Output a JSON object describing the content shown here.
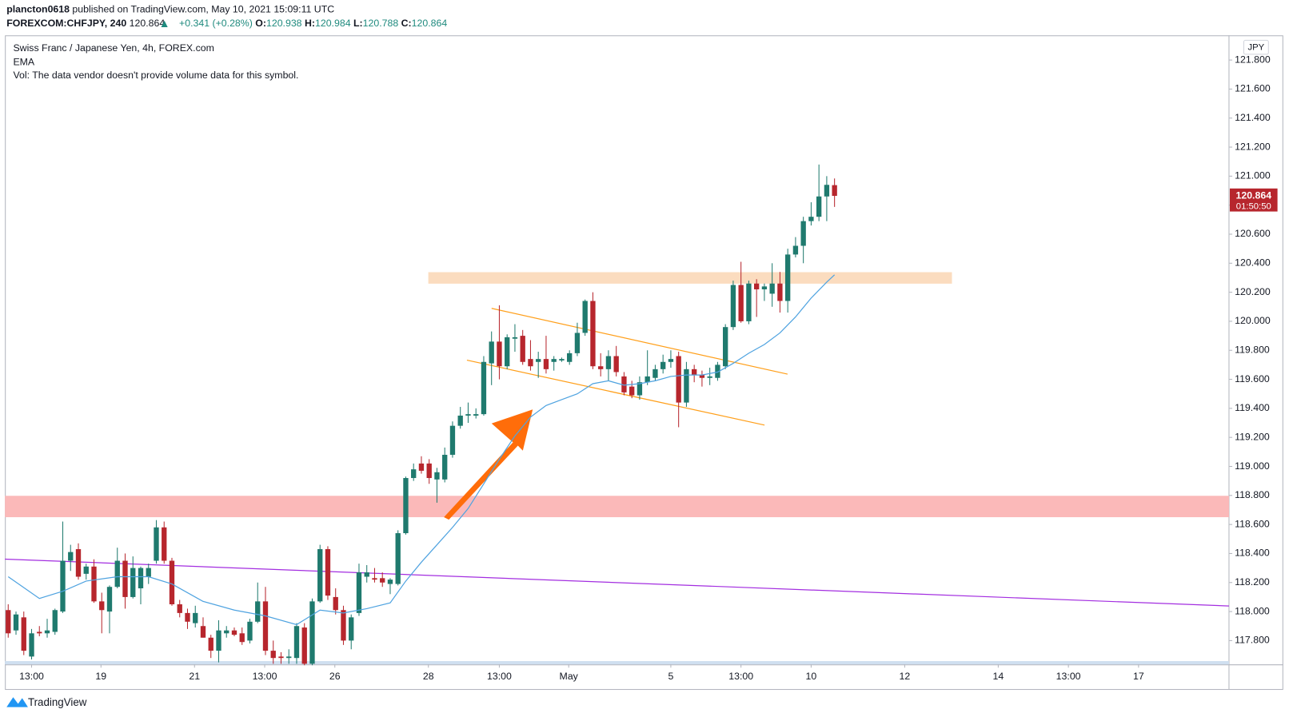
{
  "header": {
    "user": "plancton0618",
    "published": "published on TradingView.com, May 10, 2021 15:09:11 UTC",
    "symbol": "FOREXCOM:CHFJPY, 240",
    "change": "+0.341 (+0.28%)",
    "ohlc_labels": [
      "O:",
      "H:",
      "L:",
      "C:"
    ]
  },
  "brand": "TradingView",
  "chart_data": {
    "type": "candlestick",
    "legend": [
      "Swiss Franc / Japanese Yen, 4h, FOREX.com",
      "EMA",
      "Vol: The data vendor doesn't provide volume data for this symbol."
    ],
    "currency": "JPY",
    "countdown": "01:50:50",
    "up_color": "#1f7a6e",
    "down_color": "#b7262d",
    "ema_color": "#4fa3e0",
    "xlim": [
      -0.42,
      156.6
    ],
    "ylim": [
      117.636,
      121.97
    ],
    "xticks": [
      {
        "value": 3,
        "label": "13:00"
      },
      {
        "value": 11.9,
        "label": "19"
      },
      {
        "value": 23.9,
        "label": "21"
      },
      {
        "value": 32.9,
        "label": "13:00"
      },
      {
        "value": 41.9,
        "label": "26"
      },
      {
        "value": 53.9,
        "label": "28"
      },
      {
        "value": 63,
        "label": "13:00"
      },
      {
        "value": 71.9,
        "label": "May"
      },
      {
        "value": 85,
        "label": "5"
      },
      {
        "value": 94,
        "label": "13:00"
      },
      {
        "value": 103,
        "label": "10"
      },
      {
        "value": 115,
        "label": "12"
      },
      {
        "value": 127,
        "label": "14"
      },
      {
        "value": 136,
        "label": "13:00"
      },
      {
        "value": 145,
        "label": "17"
      }
    ],
    "yticks": [
      {
        "value": 117.8,
        "label": "117.800"
      },
      {
        "value": 118,
        "label": "118.000"
      },
      {
        "value": 118.2,
        "label": "118.200"
      },
      {
        "value": 118.4,
        "label": "118.400"
      },
      {
        "value": 118.6,
        "label": "118.600"
      },
      {
        "value": 118.8,
        "label": "118.800"
      },
      {
        "value": 119,
        "label": "119.000"
      },
      {
        "value": 119.2,
        "label": "119.200"
      },
      {
        "value": 119.4,
        "label": "119.400"
      },
      {
        "value": 119.6,
        "label": "119.600"
      },
      {
        "value": 119.8,
        "label": "119.800"
      },
      {
        "value": 120,
        "label": "120.000"
      },
      {
        "value": 120.2,
        "label": "120.200"
      },
      {
        "value": 120.4,
        "label": "120.400"
      },
      {
        "value": 120.6,
        "label": "120.600"
      },
      {
        "value": 120.8,
        "label": "120.800"
      },
      {
        "value": 121,
        "label": "121.000"
      },
      {
        "value": 121.2,
        "label": "121.200"
      },
      {
        "value": 121.4,
        "label": "121.400"
      },
      {
        "value": 121.6,
        "label": "121.600"
      },
      {
        "value": 121.8,
        "label": "121.800"
      }
    ],
    "candles": [
      {
        "o": 118.01,
        "h": 118.05,
        "l": 117.82,
        "c": 117.85
      },
      {
        "o": 117.87,
        "h": 118.0,
        "l": 117.84,
        "c": 117.98
      },
      {
        "o": 117.96,
        "h": 118.0,
        "l": 117.7,
        "c": 117.73
      },
      {
        "o": 117.69,
        "h": 117.88,
        "l": 117.67,
        "c": 117.85
      },
      {
        "o": 117.86,
        "h": 117.9,
        "l": 117.83,
        "c": 117.85
      },
      {
        "o": 117.85,
        "h": 117.95,
        "l": 117.82,
        "c": 117.87
      },
      {
        "o": 117.86,
        "h": 118.02,
        "l": 117.84,
        "c": 118.01
      },
      {
        "o": 118.0,
        "h": 118.62,
        "l": 117.99,
        "c": 118.35
      },
      {
        "o": 118.35,
        "h": 118.46,
        "l": 118.28,
        "c": 118.41
      },
      {
        "o": 118.43,
        "h": 118.47,
        "l": 118.22,
        "c": 118.24
      },
      {
        "o": 118.26,
        "h": 118.33,
        "l": 118.22,
        "c": 118.31
      },
      {
        "o": 118.31,
        "h": 118.36,
        "l": 118.06,
        "c": 118.07
      },
      {
        "o": 118.07,
        "h": 118.13,
        "l": 117.85,
        "c": 118.01
      },
      {
        "o": 118.0,
        "h": 118.18,
        "l": 117.85,
        "c": 118.17
      },
      {
        "o": 118.17,
        "h": 118.44,
        "l": 118.16,
        "c": 118.35
      },
      {
        "o": 118.35,
        "h": 118.4,
        "l": 118.02,
        "c": 118.1
      },
      {
        "o": 118.1,
        "h": 118.38,
        "l": 118.09,
        "c": 118.3
      },
      {
        "o": 118.16,
        "h": 118.31,
        "l": 118.05,
        "c": 118.3
      },
      {
        "o": 118.24,
        "h": 118.33,
        "l": 118.19,
        "c": 118.3
      },
      {
        "o": 118.35,
        "h": 118.63,
        "l": 118.33,
        "c": 118.58
      },
      {
        "o": 118.58,
        "h": 118.62,
        "l": 118.33,
        "c": 118.35
      },
      {
        "o": 118.35,
        "h": 118.37,
        "l": 118.04,
        "c": 118.05
      },
      {
        "o": 118.05,
        "h": 118.08,
        "l": 117.96,
        "c": 117.99
      },
      {
        "o": 117.99,
        "h": 118.02,
        "l": 117.88,
        "c": 117.93
      },
      {
        "o": 117.92,
        "h": 118.04,
        "l": 117.89,
        "c": 117.99
      },
      {
        "o": 117.9,
        "h": 117.96,
        "l": 117.82,
        "c": 117.82
      },
      {
        "o": 117.82,
        "h": 117.84,
        "l": 117.68,
        "c": 117.73
      },
      {
        "o": 117.73,
        "h": 117.94,
        "l": 117.65,
        "c": 117.87
      },
      {
        "o": 117.85,
        "h": 117.9,
        "l": 117.82,
        "c": 117.87
      },
      {
        "o": 117.87,
        "h": 117.89,
        "l": 117.83,
        "c": 117.84
      },
      {
        "o": 117.85,
        "h": 117.89,
        "l": 117.77,
        "c": 117.79
      },
      {
        "o": 117.8,
        "h": 117.95,
        "l": 117.78,
        "c": 117.93
      },
      {
        "o": 117.93,
        "h": 118.2,
        "l": 117.92,
        "c": 118.07
      },
      {
        "o": 118.07,
        "h": 118.17,
        "l": 117.7,
        "c": 117.73
      },
      {
        "o": 117.73,
        "h": 117.8,
        "l": 117.64,
        "c": 117.68
      },
      {
        "o": 117.69,
        "h": 117.72,
        "l": 117.64,
        "c": 117.68
      },
      {
        "o": 117.68,
        "h": 117.74,
        "l": 117.64,
        "c": 117.69
      },
      {
        "o": 117.68,
        "h": 117.92,
        "l": 117.64,
        "c": 117.9
      },
      {
        "o": 117.89,
        "h": 117.92,
        "l": 117.63,
        "c": 117.64
      },
      {
        "o": 117.64,
        "h": 118.09,
        "l": 117.63,
        "c": 118.07
      },
      {
        "o": 118.07,
        "h": 118.46,
        "l": 118.06,
        "c": 118.43
      },
      {
        "o": 118.43,
        "h": 118.45,
        "l": 118.08,
        "c": 118.11
      },
      {
        "o": 118.1,
        "h": 118.16,
        "l": 117.98,
        "c": 118.01
      },
      {
        "o": 118.01,
        "h": 118.04,
        "l": 117.77,
        "c": 117.8
      },
      {
        "o": 117.8,
        "h": 117.98,
        "l": 117.74,
        "c": 117.96
      },
      {
        "o": 117.99,
        "h": 118.33,
        "l": 117.97,
        "c": 118.27
      },
      {
        "o": 118.24,
        "h": 118.32,
        "l": 118.2,
        "c": 118.27
      },
      {
        "o": 118.23,
        "h": 118.3,
        "l": 118.2,
        "c": 118.22
      },
      {
        "o": 118.23,
        "h": 118.27,
        "l": 118.17,
        "c": 118.2
      },
      {
        "o": 118.19,
        "h": 118.23,
        "l": 118.12,
        "c": 118.22
      },
      {
        "o": 118.19,
        "h": 118.56,
        "l": 118.18,
        "c": 118.54
      },
      {
        "o": 118.54,
        "h": 118.93,
        "l": 118.53,
        "c": 118.92
      },
      {
        "o": 118.92,
        "h": 119.02,
        "l": 118.9,
        "c": 118.98
      },
      {
        "o": 119.02,
        "h": 119.07,
        "l": 118.95,
        "c": 118.97
      },
      {
        "o": 119.02,
        "h": 119.05,
        "l": 118.88,
        "c": 118.92
      },
      {
        "o": 118.91,
        "h": 118.99,
        "l": 118.75,
        "c": 118.96
      },
      {
        "o": 118.91,
        "h": 119.13,
        "l": 118.89,
        "c": 119.08
      },
      {
        "o": 119.08,
        "h": 119.31,
        "l": 119.06,
        "c": 119.28
      },
      {
        "o": 119.28,
        "h": 119.41,
        "l": 119.26,
        "c": 119.35
      },
      {
        "o": 119.35,
        "h": 119.44,
        "l": 119.3,
        "c": 119.36
      },
      {
        "o": 119.35,
        "h": 119.4,
        "l": 119.33,
        "c": 119.36
      },
      {
        "o": 119.36,
        "h": 119.76,
        "l": 119.35,
        "c": 119.72
      },
      {
        "o": 119.71,
        "h": 119.93,
        "l": 119.56,
        "c": 119.86
      },
      {
        "o": 119.86,
        "h": 120.11,
        "l": 119.6,
        "c": 119.69
      },
      {
        "o": 119.69,
        "h": 119.91,
        "l": 119.67,
        "c": 119.89
      },
      {
        "o": 119.88,
        "h": 119.98,
        "l": 119.79,
        "c": 119.89
      },
      {
        "o": 119.9,
        "h": 119.94,
        "l": 119.7,
        "c": 119.72
      },
      {
        "o": 119.74,
        "h": 119.87,
        "l": 119.66,
        "c": 119.69
      },
      {
        "o": 119.72,
        "h": 119.79,
        "l": 119.61,
        "c": 119.74
      },
      {
        "o": 119.74,
        "h": 119.9,
        "l": 119.64,
        "c": 119.67
      },
      {
        "o": 119.72,
        "h": 119.76,
        "l": 119.66,
        "c": 119.74
      },
      {
        "o": 119.73,
        "h": 119.75,
        "l": 119.72,
        "c": 119.74
      },
      {
        "o": 119.72,
        "h": 119.8,
        "l": 119.7,
        "c": 119.78
      },
      {
        "o": 119.78,
        "h": 119.99,
        "l": 119.76,
        "c": 119.92
      },
      {
        "o": 119.92,
        "h": 120.15,
        "l": 119.9,
        "c": 120.14
      },
      {
        "o": 120.14,
        "h": 120.2,
        "l": 119.67,
        "c": 119.69
      },
      {
        "o": 119.69,
        "h": 119.78,
        "l": 119.62,
        "c": 119.67
      },
      {
        "o": 119.67,
        "h": 119.8,
        "l": 119.59,
        "c": 119.76
      },
      {
        "o": 119.76,
        "h": 119.83,
        "l": 119.62,
        "c": 119.65
      },
      {
        "o": 119.62,
        "h": 119.65,
        "l": 119.49,
        "c": 119.51
      },
      {
        "o": 119.55,
        "h": 119.59,
        "l": 119.47,
        "c": 119.49
      },
      {
        "o": 119.49,
        "h": 119.62,
        "l": 119.46,
        "c": 119.58
      },
      {
        "o": 119.58,
        "h": 119.8,
        "l": 119.56,
        "c": 119.62
      },
      {
        "o": 119.61,
        "h": 119.7,
        "l": 119.59,
        "c": 119.67
      },
      {
        "o": 119.67,
        "h": 119.77,
        "l": 119.64,
        "c": 119.72
      },
      {
        "o": 119.72,
        "h": 119.8,
        "l": 119.68,
        "c": 119.74
      },
      {
        "o": 119.76,
        "h": 119.79,
        "l": 119.27,
        "c": 119.44
      },
      {
        "o": 119.44,
        "h": 119.72,
        "l": 119.41,
        "c": 119.67
      },
      {
        "o": 119.67,
        "h": 119.7,
        "l": 119.58,
        "c": 119.63
      },
      {
        "o": 119.63,
        "h": 119.66,
        "l": 119.55,
        "c": 119.61
      },
      {
        "o": 119.61,
        "h": 119.68,
        "l": 119.56,
        "c": 119.62
      },
      {
        "o": 119.61,
        "h": 119.72,
        "l": 119.59,
        "c": 119.7
      },
      {
        "o": 119.69,
        "h": 119.98,
        "l": 119.67,
        "c": 119.96
      },
      {
        "o": 119.96,
        "h": 120.28,
        "l": 119.94,
        "c": 120.25
      },
      {
        "o": 120.25,
        "h": 120.41,
        "l": 119.99,
        "c": 120.0
      },
      {
        "o": 120.0,
        "h": 120.28,
        "l": 119.98,
        "c": 120.26
      },
      {
        "o": 120.26,
        "h": 120.29,
        "l": 120.03,
        "c": 120.22
      },
      {
        "o": 120.22,
        "h": 120.26,
        "l": 120.14,
        "c": 120.24
      },
      {
        "o": 120.19,
        "h": 120.4,
        "l": 120.1,
        "c": 120.26
      },
      {
        "o": 120.26,
        "h": 120.34,
        "l": 120.06,
        "c": 120.14
      },
      {
        "o": 120.14,
        "h": 120.5,
        "l": 120.06,
        "c": 120.46
      },
      {
        "o": 120.46,
        "h": 120.58,
        "l": 120.44,
        "c": 120.52
      },
      {
        "o": 120.52,
        "h": 120.72,
        "l": 120.4,
        "c": 120.69
      },
      {
        "o": 120.69,
        "h": 120.82,
        "l": 120.66,
        "c": 120.72
      },
      {
        "o": 120.72,
        "h": 121.08,
        "l": 120.69,
        "c": 120.86
      },
      {
        "o": 120.86,
        "h": 121.0,
        "l": 120.69,
        "c": 120.94
      },
      {
        "o": 120.938,
        "h": 120.984,
        "l": 120.788,
        "c": 120.864
      }
    ],
    "ema": {
      "x": [
        0,
        4,
        7,
        10,
        14,
        18,
        21,
        25,
        29,
        33,
        37,
        40,
        43,
        46,
        49,
        51,
        53,
        55,
        57,
        59,
        61,
        63,
        65,
        67,
        69,
        71,
        73,
        75,
        77,
        79,
        81,
        83,
        85,
        87,
        89,
        91,
        93,
        95,
        97,
        99,
        101,
        103,
        105,
        106
      ],
      "values": [
        118.24,
        118.09,
        118.14,
        118.21,
        118.24,
        118.24,
        118.19,
        118.07,
        118.01,
        117.97,
        117.91,
        118.01,
        117.99,
        118.02,
        118.06,
        118.21,
        118.34,
        118.46,
        118.58,
        118.71,
        118.88,
        119.05,
        119.21,
        119.34,
        119.42,
        119.46,
        119.5,
        119.57,
        119.59,
        119.56,
        119.57,
        119.59,
        119.62,
        119.63,
        119.63,
        119.65,
        119.71,
        119.78,
        119.84,
        119.92,
        120.03,
        120.16,
        120.27,
        120.32
      ]
    }
  }
}
